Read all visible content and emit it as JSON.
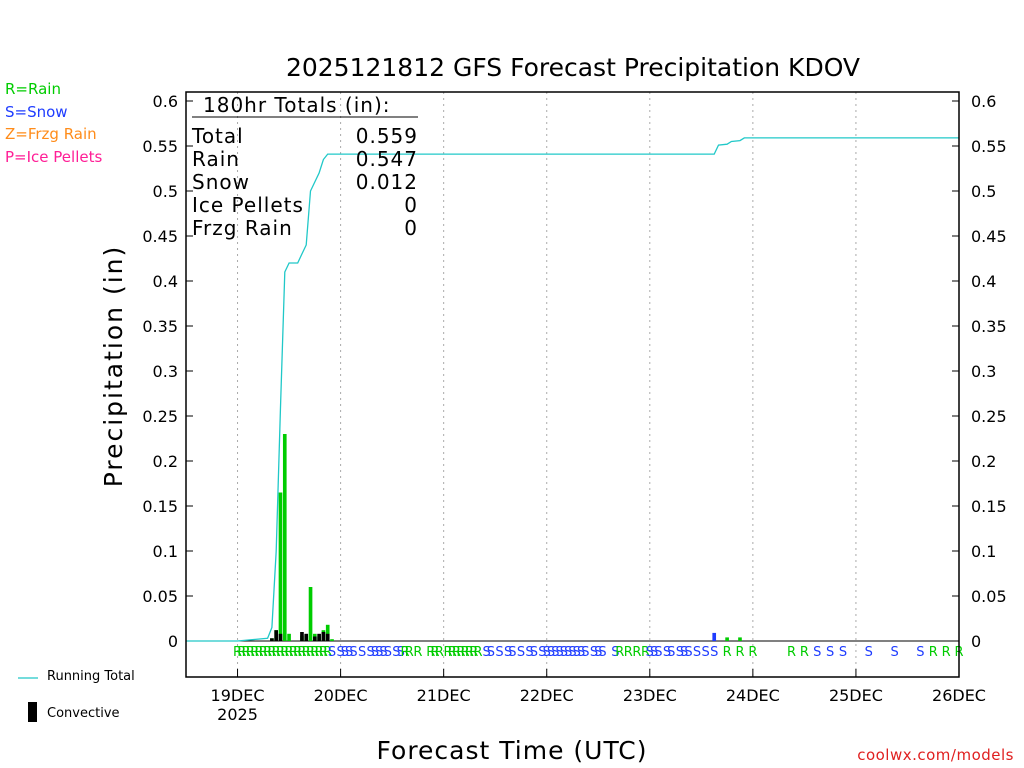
{
  "colors": {
    "rain": "#00cc00",
    "snow": "#1e3cff",
    "frzg_rain": "#ff8c1a",
    "ice_pellets": "#ff1e96",
    "running_total": "#20c8c8",
    "convective": "#000000",
    "credit": "#e02020"
  },
  "legend": {
    "rain": "R=Rain",
    "snow": "S=Snow",
    "frzg_rain": "Z=Frzg Rain",
    "ice_pellets": "P=Ice Pellets",
    "running_total": "Running Total",
    "convective": "Convective"
  },
  "credit": "coolwx.com/models",
  "chart_data": {
    "type": "bar",
    "title": "2025121812 GFS Forecast Precipitation KDOV",
    "xlabel": "Forecast Time (UTC)",
    "ylabel": "Precipitation (in)",
    "xlim_hours": [
      -6,
      174
    ],
    "ylim": [
      -0.04,
      0.61
    ],
    "y_ticks": [
      0,
      0.05,
      0.1,
      0.15,
      0.2,
      0.25,
      0.3,
      0.35,
      0.4,
      0.45,
      0.5,
      0.55,
      0.6
    ],
    "y_tick_labels": [
      "0",
      "0.05",
      "0.1",
      "0.15",
      "0.2",
      "0.25",
      "0.3",
      "0.35",
      "0.4",
      "0.45",
      "0.5",
      "0.55",
      "0.6"
    ],
    "x_ticks": [
      {
        "hour": 6,
        "label": "19DEC",
        "sublabel": "2025"
      },
      {
        "hour": 30,
        "label": "20DEC"
      },
      {
        "hour": 54,
        "label": "21DEC"
      },
      {
        "hour": 78,
        "label": "22DEC"
      },
      {
        "hour": 102,
        "label": "23DEC"
      },
      {
        "hour": 126,
        "label": "24DEC"
      },
      {
        "hour": 150,
        "label": "25DEC"
      },
      {
        "hour": 174,
        "label": "26DEC"
      }
    ],
    "totals": {
      "heading": "180hr Totals (in):",
      "rows": [
        {
          "label": "Total",
          "value": "0.559"
        },
        {
          "label": "Rain",
          "value": "0.547"
        },
        {
          "label": "Snow",
          "value": "0.012"
        },
        {
          "label": "Ice Pellets",
          "value": "0"
        },
        {
          "label": "Frzg Rain",
          "value": "0"
        }
      ]
    },
    "bars": [
      {
        "hour": 14,
        "value": 0.003,
        "type": "rain"
      },
      {
        "hour": 15,
        "value": 0.012,
        "type": "rain"
      },
      {
        "hour": 16,
        "value": 0.165,
        "type": "rain"
      },
      {
        "hour": 17,
        "value": 0.23,
        "type": "rain"
      },
      {
        "hour": 18,
        "value": 0.008,
        "type": "rain"
      },
      {
        "hour": 21,
        "value": 0.006,
        "type": "rain"
      },
      {
        "hour": 22,
        "value": 0.006,
        "type": "rain"
      },
      {
        "hour": 23,
        "value": 0.06,
        "type": "rain"
      },
      {
        "hour": 24,
        "value": 0.008,
        "type": "rain"
      },
      {
        "hour": 25,
        "value": 0.005,
        "type": "rain"
      },
      {
        "hour": 26,
        "value": 0.012,
        "type": "rain"
      },
      {
        "hour": 27,
        "value": 0.018,
        "type": "rain"
      },
      {
        "hour": 28,
        "value": 0.002,
        "type": "rain"
      },
      {
        "hour": 117,
        "value": 0.009,
        "type": "snow"
      },
      {
        "hour": 120,
        "value": 0.004,
        "type": "rain"
      },
      {
        "hour": 123,
        "value": 0.004,
        "type": "rain"
      }
    ],
    "convective": [
      {
        "hour": 14,
        "value": 0.003
      },
      {
        "hour": 15,
        "value": 0.012
      },
      {
        "hour": 16,
        "value": 0.008
      },
      {
        "hour": 21,
        "value": 0.01
      },
      {
        "hour": 22,
        "value": 0.008
      },
      {
        "hour": 24,
        "value": 0.005
      },
      {
        "hour": 25,
        "value": 0.008
      },
      {
        "hour": 26,
        "value": 0.01
      },
      {
        "hour": 27,
        "value": 0.008
      }
    ],
    "running_total": [
      [
        -6,
        0
      ],
      [
        6,
        0
      ],
      [
        13,
        0.003
      ],
      [
        14,
        0.015
      ],
      [
        15,
        0.1
      ],
      [
        16,
        0.26
      ],
      [
        17,
        0.41
      ],
      [
        18,
        0.42
      ],
      [
        20,
        0.42
      ],
      [
        21,
        0.43
      ],
      [
        22,
        0.44
      ],
      [
        23,
        0.5
      ],
      [
        24,
        0.51
      ],
      [
        25,
        0.52
      ],
      [
        26,
        0.535
      ],
      [
        27,
        0.541
      ],
      [
        117,
        0.541
      ],
      [
        118,
        0.551
      ],
      [
        120,
        0.552
      ],
      [
        121,
        0.555
      ],
      [
        123,
        0.556
      ],
      [
        124,
        0.559
      ],
      [
        174,
        0.559
      ]
    ],
    "ptype_markers": [
      {
        "hour": 6,
        "type": "rain"
      },
      {
        "hour": 7,
        "type": "rain"
      },
      {
        "hour": 8,
        "type": "rain"
      },
      {
        "hour": 9,
        "type": "rain"
      },
      {
        "hour": 10,
        "type": "rain"
      },
      {
        "hour": 11,
        "type": "rain"
      },
      {
        "hour": 12,
        "type": "rain"
      },
      {
        "hour": 13,
        "type": "rain"
      },
      {
        "hour": 14,
        "type": "rain"
      },
      {
        "hour": 15,
        "type": "rain"
      },
      {
        "hour": 16,
        "type": "rain"
      },
      {
        "hour": 17,
        "type": "rain"
      },
      {
        "hour": 18,
        "type": "rain"
      },
      {
        "hour": 19,
        "type": "rain"
      },
      {
        "hour": 20,
        "type": "rain"
      },
      {
        "hour": 21,
        "type": "rain"
      },
      {
        "hour": 22,
        "type": "rain"
      },
      {
        "hour": 23,
        "type": "rain"
      },
      {
        "hour": 24,
        "type": "rain"
      },
      {
        "hour": 25,
        "type": "rain"
      },
      {
        "hour": 26,
        "type": "rain"
      },
      {
        "hour": 27,
        "type": "rain"
      },
      {
        "hour": 28,
        "type": "snow"
      },
      {
        "hour": 30,
        "type": "snow"
      },
      {
        "hour": 31,
        "type": "snow"
      },
      {
        "hour": 32,
        "type": "snow"
      },
      {
        "hour": 33,
        "type": "snow"
      },
      {
        "hour": 35,
        "type": "snow"
      },
      {
        "hour": 37,
        "type": "snow"
      },
      {
        "hour": 38,
        "type": "snow"
      },
      {
        "hour": 39,
        "type": "snow"
      },
      {
        "hour": 40,
        "type": "snow"
      },
      {
        "hour": 41,
        "type": "snow"
      },
      {
        "hour": 43,
        "type": "snow"
      },
      {
        "hour": 44,
        "type": "snow"
      },
      {
        "hour": 45,
        "type": "rain"
      },
      {
        "hour": 46,
        "type": "rain"
      },
      {
        "hour": 48,
        "type": "rain"
      },
      {
        "hour": 51,
        "type": "rain"
      },
      {
        "hour": 52,
        "type": "rain"
      },
      {
        "hour": 53,
        "type": "rain"
      },
      {
        "hour": 55,
        "type": "rain"
      },
      {
        "hour": 56,
        "type": "rain"
      },
      {
        "hour": 57,
        "type": "rain"
      },
      {
        "hour": 58,
        "type": "rain"
      },
      {
        "hour": 59,
        "type": "rain"
      },
      {
        "hour": 60,
        "type": "rain"
      },
      {
        "hour": 61,
        "type": "rain"
      },
      {
        "hour": 62,
        "type": "rain"
      },
      {
        "hour": 64,
        "type": "snow"
      },
      {
        "hour": 65,
        "type": "snow"
      },
      {
        "hour": 67,
        "type": "snow"
      },
      {
        "hour": 69,
        "type": "snow"
      },
      {
        "hour": 70,
        "type": "snow"
      },
      {
        "hour": 72,
        "type": "snow"
      },
      {
        "hour": 74,
        "type": "snow"
      },
      {
        "hour": 75,
        "type": "snow"
      },
      {
        "hour": 77,
        "type": "snow"
      },
      {
        "hour": 78,
        "type": "snow"
      },
      {
        "hour": 79,
        "type": "snow"
      },
      {
        "hour": 80,
        "type": "snow"
      },
      {
        "hour": 81,
        "type": "snow"
      },
      {
        "hour": 82,
        "type": "snow"
      },
      {
        "hour": 83,
        "type": "snow"
      },
      {
        "hour": 84,
        "type": "snow"
      },
      {
        "hour": 85,
        "type": "snow"
      },
      {
        "hour": 86,
        "type": "snow"
      },
      {
        "hour": 87,
        "type": "snow"
      },
      {
        "hour": 89,
        "type": "snow"
      },
      {
        "hour": 90,
        "type": "snow"
      },
      {
        "hour": 91,
        "type": "snow"
      },
      {
        "hour": 94,
        "type": "snow"
      },
      {
        "hour": 95,
        "type": "rain"
      },
      {
        "hour": 97,
        "type": "rain"
      },
      {
        "hour": 99,
        "type": "rain"
      },
      {
        "hour": 101,
        "type": "rain"
      },
      {
        "hour": 102,
        "type": "snow"
      },
      {
        "hour": 103,
        "type": "snow"
      },
      {
        "hour": 104,
        "type": "snow"
      },
      {
        "hour": 106,
        "type": "snow"
      },
      {
        "hour": 107,
        "type": "snow"
      },
      {
        "hour": 109,
        "type": "snow"
      },
      {
        "hour": 110,
        "type": "snow"
      },
      {
        "hour": 111,
        "type": "snow"
      },
      {
        "hour": 113,
        "type": "snow"
      },
      {
        "hour": 115,
        "type": "snow"
      },
      {
        "hour": 117,
        "type": "snow"
      },
      {
        "hour": 120,
        "type": "rain"
      },
      {
        "hour": 123,
        "type": "rain"
      },
      {
        "hour": 126,
        "type": "rain"
      },
      {
        "hour": 135,
        "type": "rain"
      },
      {
        "hour": 138,
        "type": "rain"
      },
      {
        "hour": 141,
        "type": "snow"
      },
      {
        "hour": 144,
        "type": "snow"
      },
      {
        "hour": 147,
        "type": "snow"
      },
      {
        "hour": 153,
        "type": "snow"
      },
      {
        "hour": 159,
        "type": "snow"
      },
      {
        "hour": 165,
        "type": "snow"
      },
      {
        "hour": 168,
        "type": "rain"
      },
      {
        "hour": 171,
        "type": "rain"
      },
      {
        "hour": 174,
        "type": "rain"
      }
    ]
  }
}
